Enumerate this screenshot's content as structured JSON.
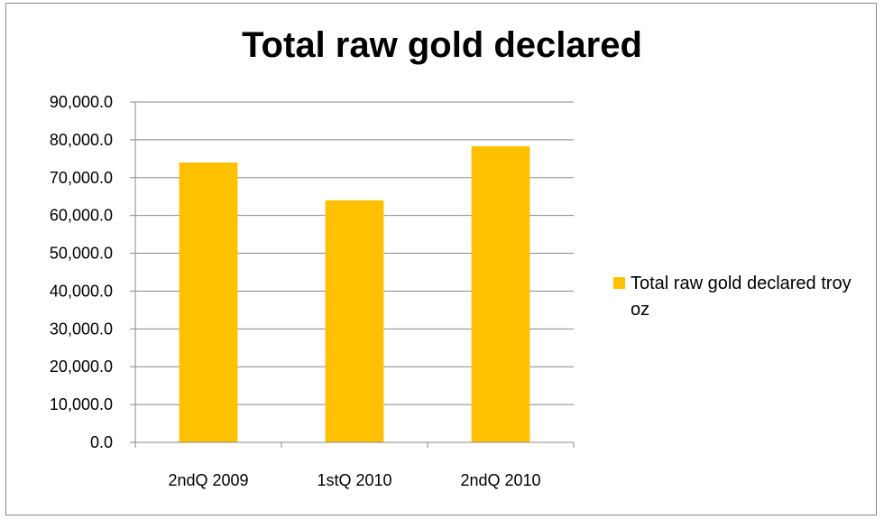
{
  "chart_data": {
    "type": "bar",
    "title": "Total raw gold declared",
    "categories": [
      "2ndQ 2009",
      "1stQ 2010",
      "2ndQ 2010"
    ],
    "series": [
      {
        "name": "Total raw gold declared troy oz",
        "color": "#FFC000",
        "values": [
          74000,
          64000,
          78300
        ]
      }
    ],
    "ylim": [
      0,
      90000
    ],
    "yticks": [
      "0.0",
      "10,000.0",
      "20,000.0",
      "30,000.0",
      "40,000.0",
      "50,000.0",
      "60,000.0",
      "70,000.0",
      "80,000.0",
      "90,000.0"
    ],
    "grid": true,
    "legend_position": "right"
  }
}
